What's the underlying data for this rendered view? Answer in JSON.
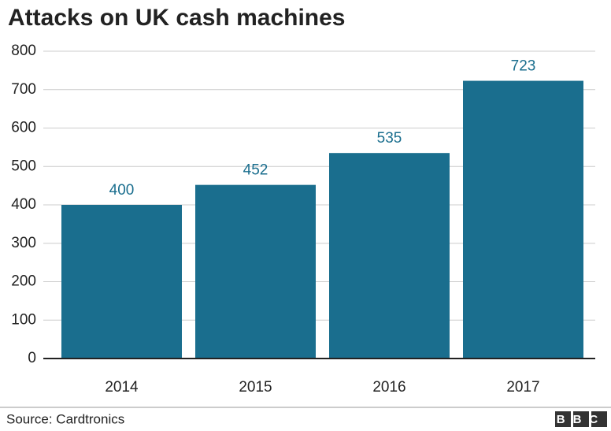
{
  "chart_data": {
    "type": "bar",
    "title": "Attacks on UK cash machines",
    "categories": [
      "2014",
      "2015",
      "2016",
      "2017"
    ],
    "values": [
      400,
      452,
      535,
      723
    ],
    "color": "#1a6e8e",
    "ylim": [
      0,
      800
    ],
    "yticks": [
      0,
      100,
      200,
      300,
      400,
      500,
      600,
      700,
      800
    ],
    "grid": true,
    "source": "Source: Cardtronics",
    "logo": "BBC"
  }
}
